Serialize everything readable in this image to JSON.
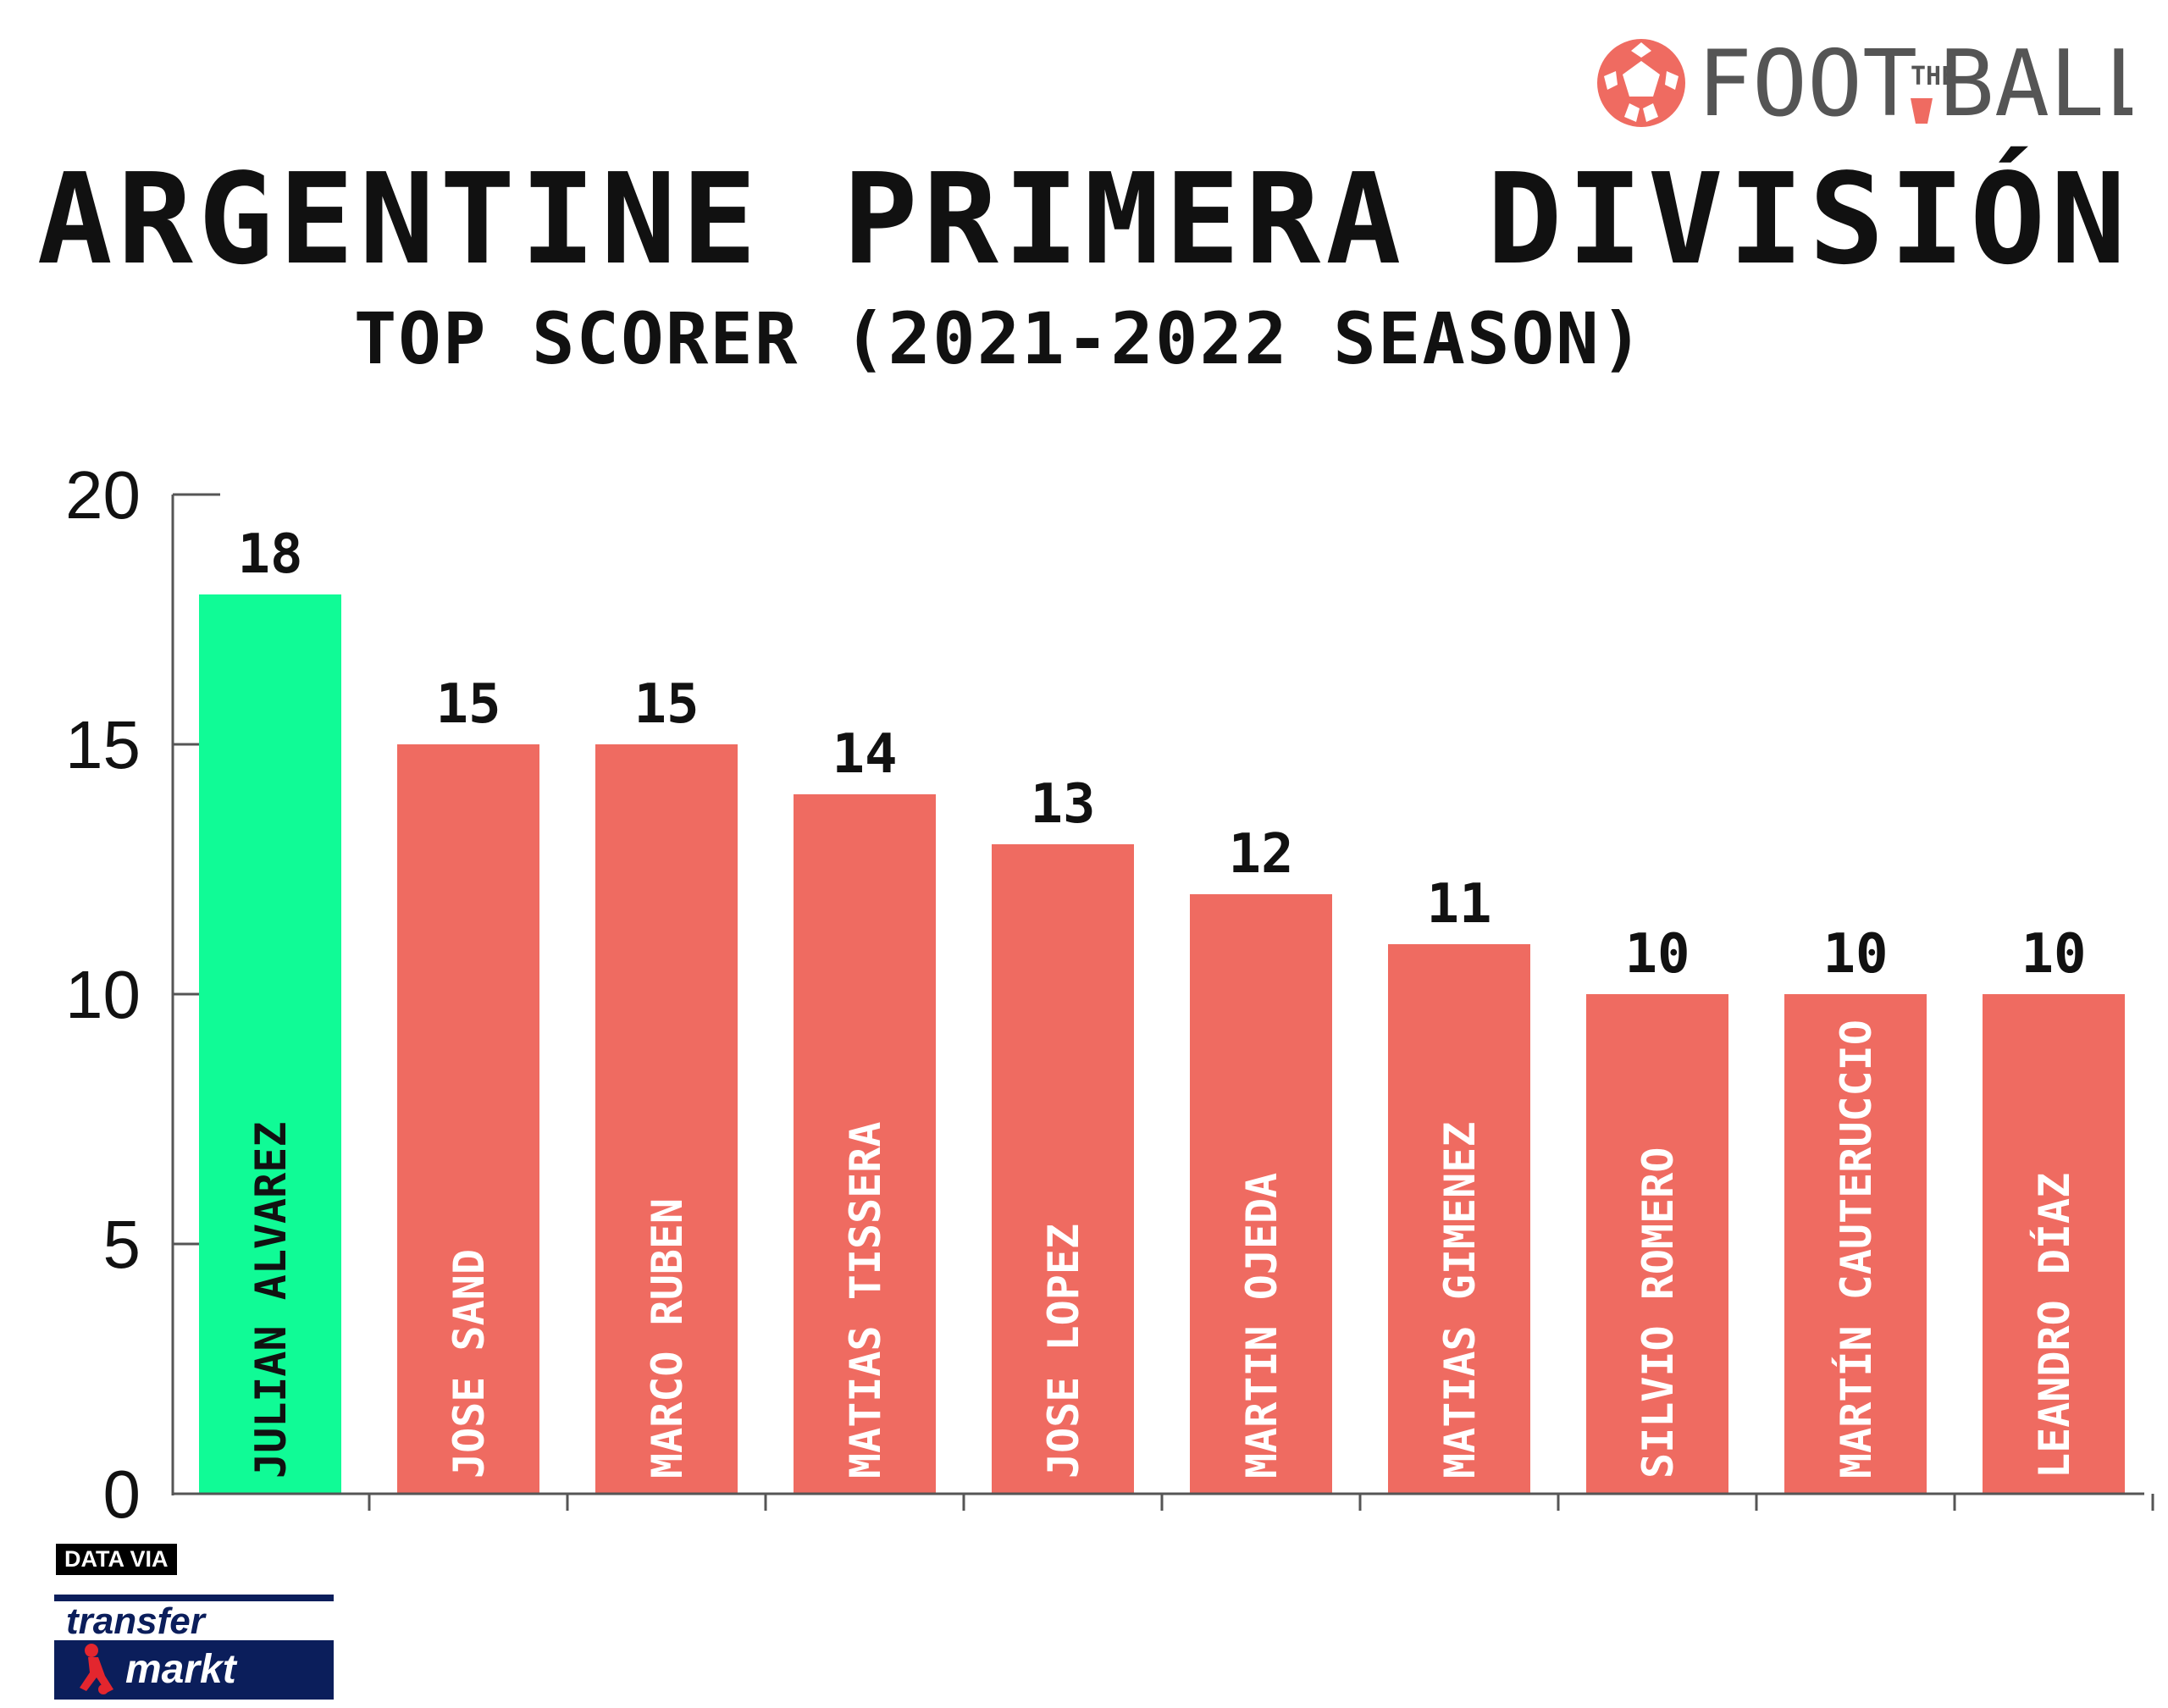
{
  "brand": {
    "left_text": "FOOT",
    "small_text": "THE",
    "right_text": "BALL",
    "color": "#ef6b61"
  },
  "source": {
    "label": "DATA VIA",
    "logo_line1": "transfer",
    "logo_line2": "markt",
    "logo_bg": "#0b1e5b"
  },
  "colors": {
    "highlight": "#10fb96",
    "bar": "#ef6b61"
  },
  "chart_data": {
    "type": "bar",
    "title": "ARGENTINE PRIMERA DIVISIÓN",
    "subtitle": "TOP SCORER (2021-2022 SEASON)",
    "xlabel": "",
    "ylabel": "",
    "ylim": [
      0,
      20
    ],
    "yticks": [
      0,
      5,
      10,
      15,
      20
    ],
    "grid": false,
    "categories": [
      "JULIAN ALVAREZ",
      "JOSE SAND",
      "MARCO RUBEN",
      "MATIAS TISSERA",
      "JOSE LOPEZ",
      "MARTIN OJEDA",
      "MATIAS GIMENEZ",
      "SILVIO ROMERO",
      "MARTÍN CAUTERUCCIO",
      "LEANDRO DÍAZ"
    ],
    "values": [
      18,
      15,
      15,
      14,
      13,
      12,
      11,
      10,
      10,
      10
    ],
    "highlight_index": 0
  }
}
